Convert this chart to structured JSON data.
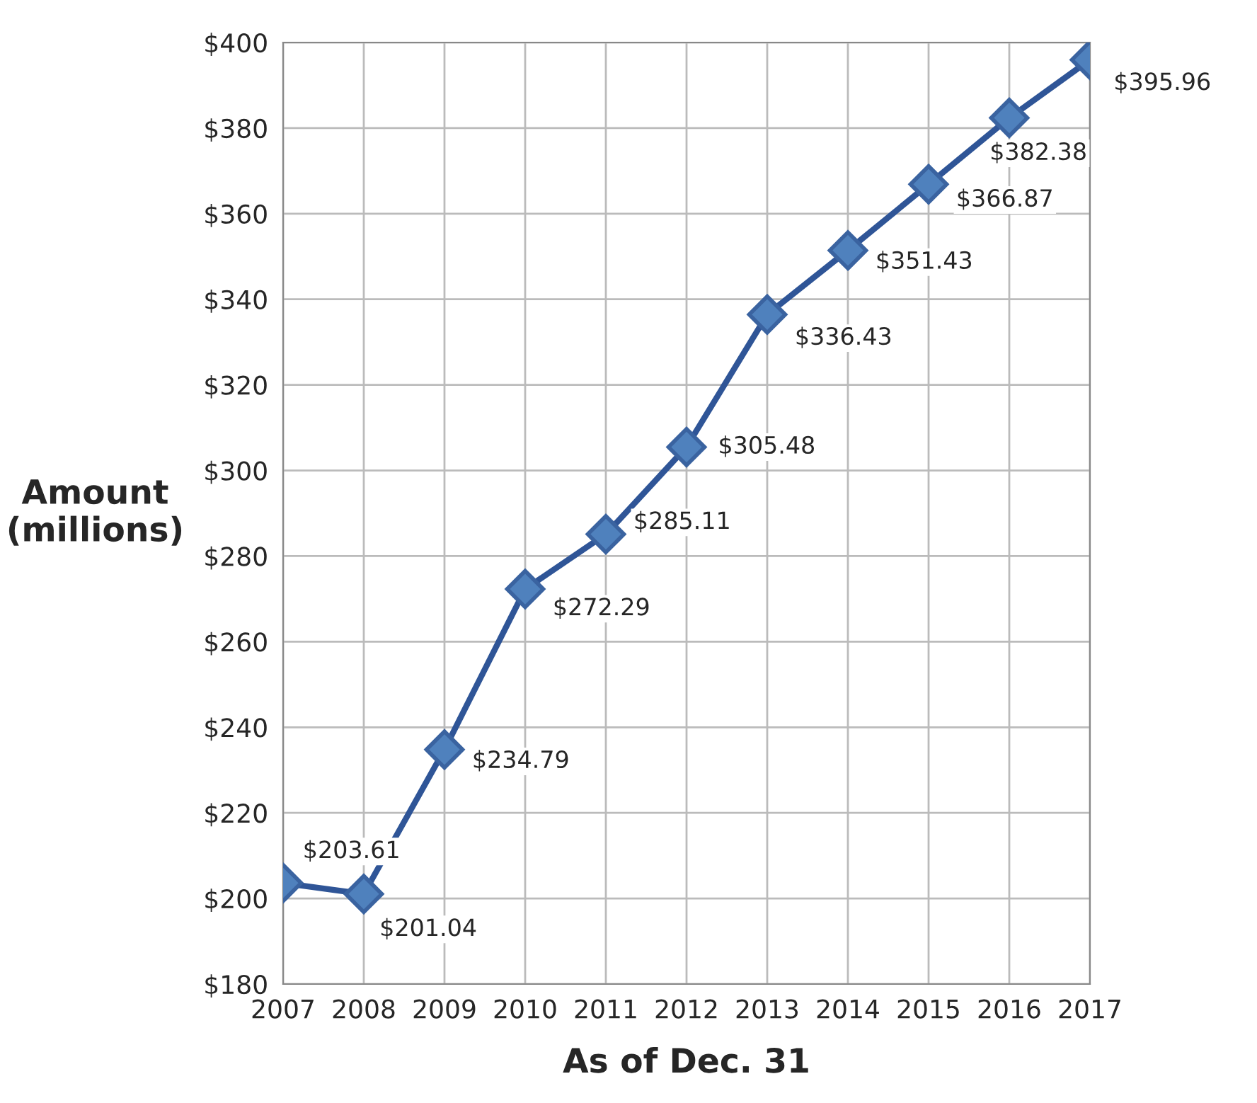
{
  "chart_data": {
    "type": "line",
    "xlabel": "As of Dec. 31",
    "ylabel": "Amount\n(millions)",
    "categories": [
      "2007",
      "2008",
      "2009",
      "2010",
      "2011",
      "2012",
      "2013",
      "2014",
      "2015",
      "2016",
      "2017"
    ],
    "series": [
      {
        "color": "#2f5597",
        "values": [
          203.61,
          201.04,
          234.79,
          272.29,
          285.11,
          305.48,
          336.43,
          351.43,
          366.87,
          382.38,
          395.96
        ],
        "value_labels": [
          "$203.61",
          "$201.04",
          "$234.79",
          "$272.29",
          "$285.11",
          "$305.48",
          "$336.43",
          "$351.43",
          "$366.87",
          "$382.38",
          "$395.96"
        ]
      }
    ],
    "ylim": [
      180,
      400
    ],
    "yticks": [
      {
        "value": 180,
        "label": "$180"
      },
      {
        "value": 200,
        "label": "$200"
      },
      {
        "value": 220,
        "label": "$220"
      },
      {
        "value": 240,
        "label": "$240"
      },
      {
        "value": 260,
        "label": "$260"
      },
      {
        "value": 280,
        "label": "$280"
      },
      {
        "value": 300,
        "label": "$300"
      },
      {
        "value": 320,
        "label": "$320"
      },
      {
        "value": 340,
        "label": "$340"
      },
      {
        "value": 360,
        "label": "$360"
      },
      {
        "value": 380,
        "label": "$380"
      },
      {
        "value": 400,
        "label": "$400"
      }
    ],
    "grid": true,
    "marker": "diamond",
    "line_style": "solid"
  }
}
